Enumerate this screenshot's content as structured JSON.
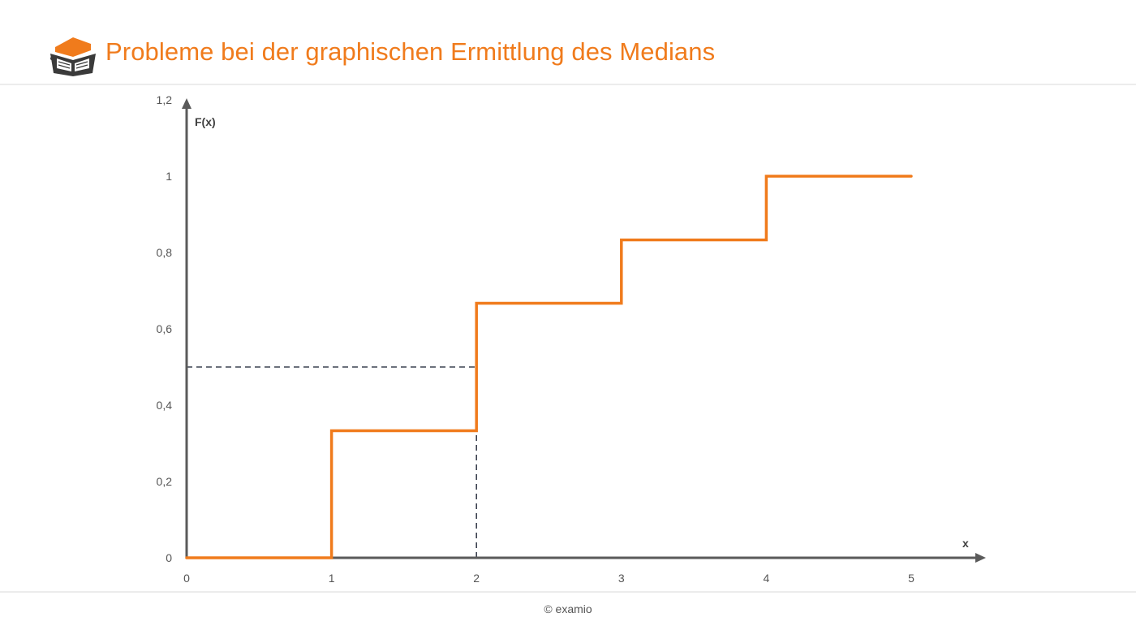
{
  "header": {
    "title": "Probleme bei der graphischen Ermittlung des Medians",
    "logo_icon": "graduation-cap-book-icon"
  },
  "footer": {
    "copyright": "© examio"
  },
  "colors": {
    "accent": "#f07b1c",
    "axis": "#5a5a5a",
    "dashed": "#3c4250"
  },
  "chart_data": {
    "type": "line",
    "step": true,
    "title": "",
    "xlabel": "x",
    "ylabel": "F(x)",
    "xlim": [
      0,
      5.5
    ],
    "ylim": [
      0,
      1.2
    ],
    "x_ticks": [
      0,
      1,
      2,
      3,
      4,
      5
    ],
    "x_tick_labels": [
      "0",
      "1",
      "2",
      "3",
      "4",
      "5"
    ],
    "y_ticks": [
      0,
      0.2,
      0.4,
      0.6,
      0.8,
      1,
      1.2
    ],
    "y_tick_labels": [
      "0",
      "0,2",
      "0,4",
      "0,6",
      "0,8",
      "1",
      "1,2"
    ],
    "grid": false,
    "series": [
      {
        "x": [
          0,
          1,
          2,
          3,
          4,
          5
        ],
        "values": [
          0,
          0.333,
          0.667,
          0.833,
          1,
          1
        ]
      }
    ],
    "annotations": [
      {
        "type": "dashed-horizontal",
        "y": 0.5,
        "x_from": 0,
        "x_to": 2
      },
      {
        "type": "dashed-vertical",
        "x": 2,
        "y_from": 0,
        "y_to": 0.5
      }
    ]
  }
}
